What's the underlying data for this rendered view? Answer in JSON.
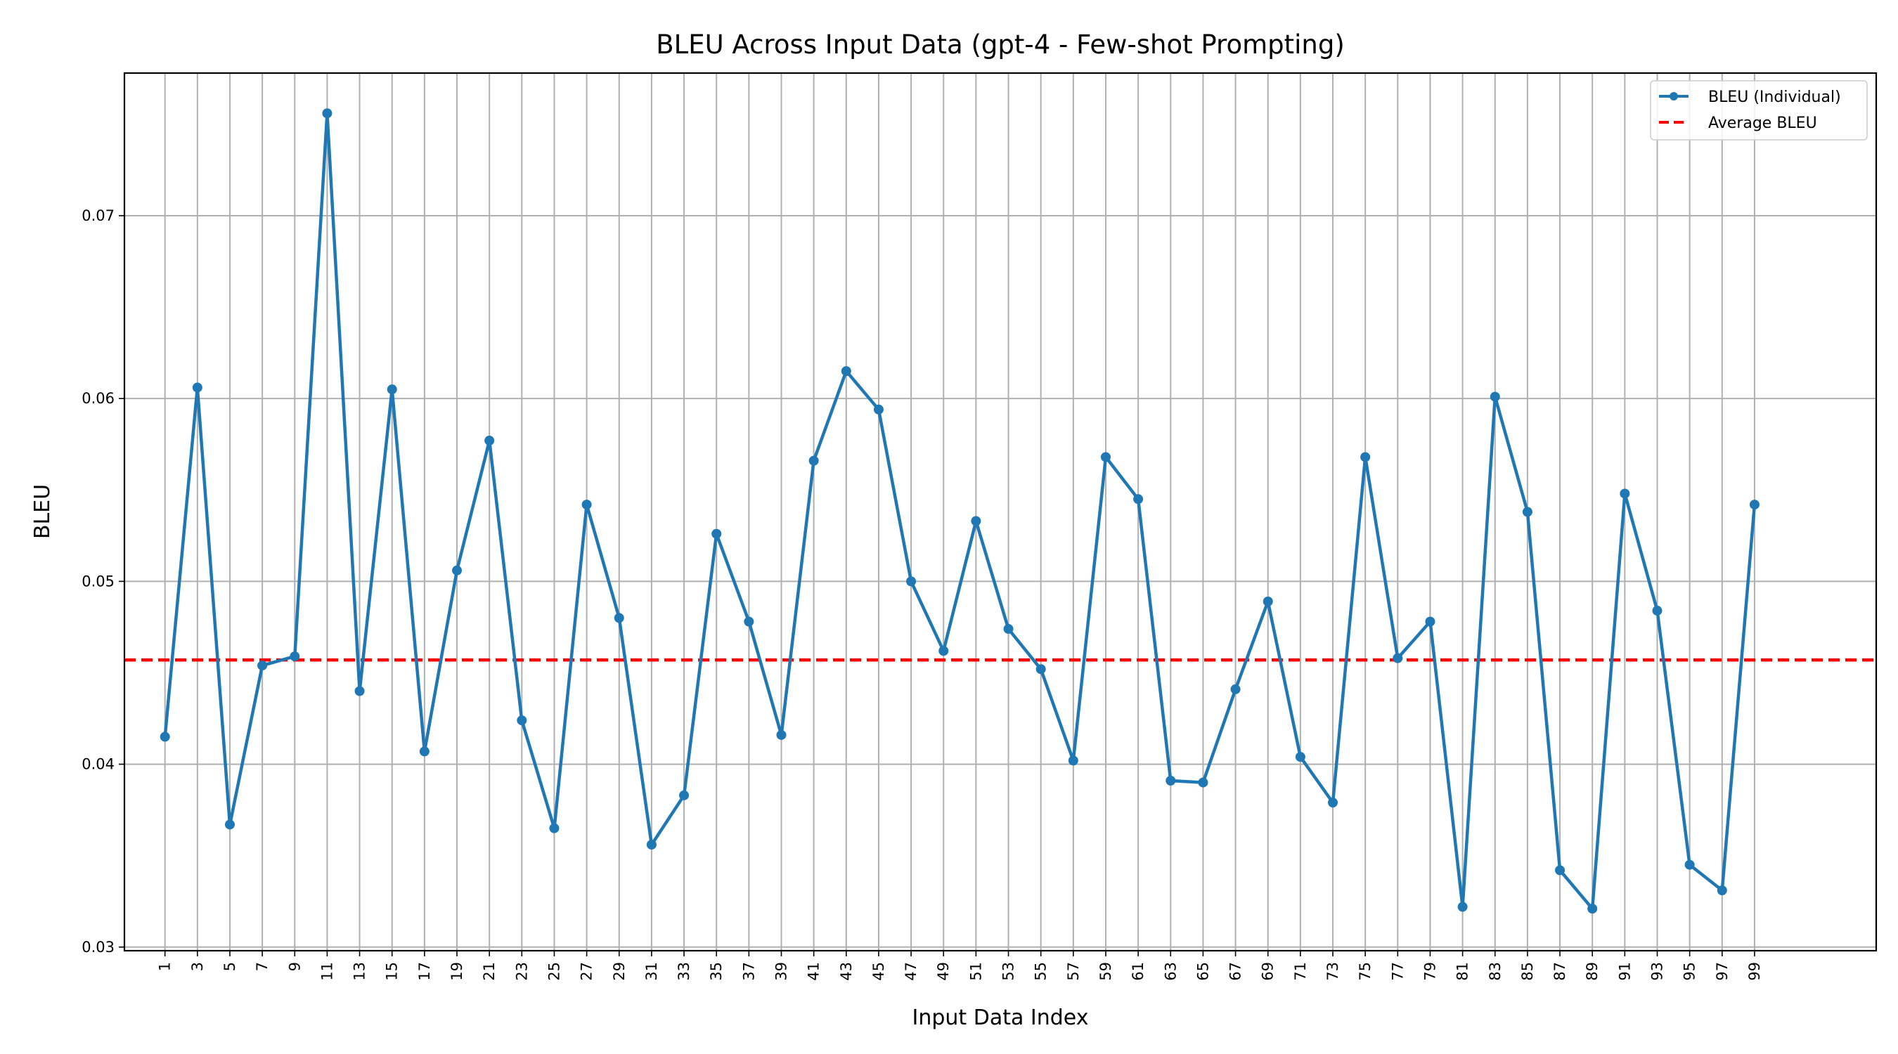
{
  "chart_data": {
    "type": "line",
    "title": "BLEU Across Input Data (gpt-4 - Few-shot Prompting)",
    "xlabel": "Input Data Index",
    "ylabel": "BLEU",
    "ylim": [
      0.0298,
      0.0778
    ],
    "xlim": [
      -1.5,
      106.5
    ],
    "y_ticks": [
      0.03,
      0.04,
      0.05,
      0.06,
      0.07
    ],
    "y_tick_labels": [
      "0.03",
      "0.04",
      "0.05",
      "0.06",
      "0.07"
    ],
    "x_tick_labels": [
      "1",
      "3",
      "5",
      "7",
      "9",
      "11",
      "13",
      "15",
      "17",
      "19",
      "21",
      "23",
      "25",
      "27",
      "29",
      "31",
      "33",
      "35",
      "37",
      "39",
      "41",
      "43",
      "45",
      "47",
      "49",
      "51",
      "53",
      "55",
      "57",
      "59",
      "61",
      "63",
      "65",
      "67",
      "69",
      "71",
      "73",
      "75",
      "77",
      "79",
      "81",
      "83",
      "85",
      "87",
      "89",
      "91",
      "93",
      "95",
      "97",
      "99"
    ],
    "grid": true,
    "legend_position": "upper right",
    "series": [
      {
        "name": "BLEU (Individual)",
        "color": "#1f77b4",
        "style": "solid-with-markers",
        "x": [
          1,
          3,
          5,
          7,
          9,
          11,
          13,
          15,
          17,
          19,
          21,
          23,
          25,
          27,
          29,
          31,
          33,
          35,
          37,
          39,
          41,
          43,
          45,
          47,
          49,
          51,
          53,
          55,
          57,
          59,
          61,
          63,
          65,
          67,
          69,
          71,
          73,
          75,
          77,
          79,
          81,
          83,
          85,
          87,
          89,
          91,
          93,
          95,
          97,
          99
        ],
        "values": [
          0.0415,
          0.0606,
          0.0367,
          0.0454,
          0.0459,
          0.0756,
          0.044,
          0.0605,
          0.0407,
          0.0506,
          0.0577,
          0.0424,
          0.0365,
          0.0542,
          0.048,
          0.0356,
          0.0383,
          0.0526,
          0.0478,
          0.0416,
          0.0566,
          0.0615,
          0.0594,
          0.05,
          0.0462,
          0.0533,
          0.0474,
          0.0452,
          0.0402,
          0.0568,
          0.0545,
          0.0391,
          0.039,
          0.0441,
          0.0489,
          0.0404,
          0.0379,
          0.0568,
          0.0458,
          0.0478,
          0.0322,
          0.0601,
          0.0538,
          0.0342,
          0.0321,
          0.0548,
          0.0484,
          0.0345,
          0.0331,
          0.0542
        ]
      },
      {
        "name": "Average BLEU",
        "color": "#ff0000",
        "style": "dashed",
        "value": 0.0457
      }
    ]
  }
}
